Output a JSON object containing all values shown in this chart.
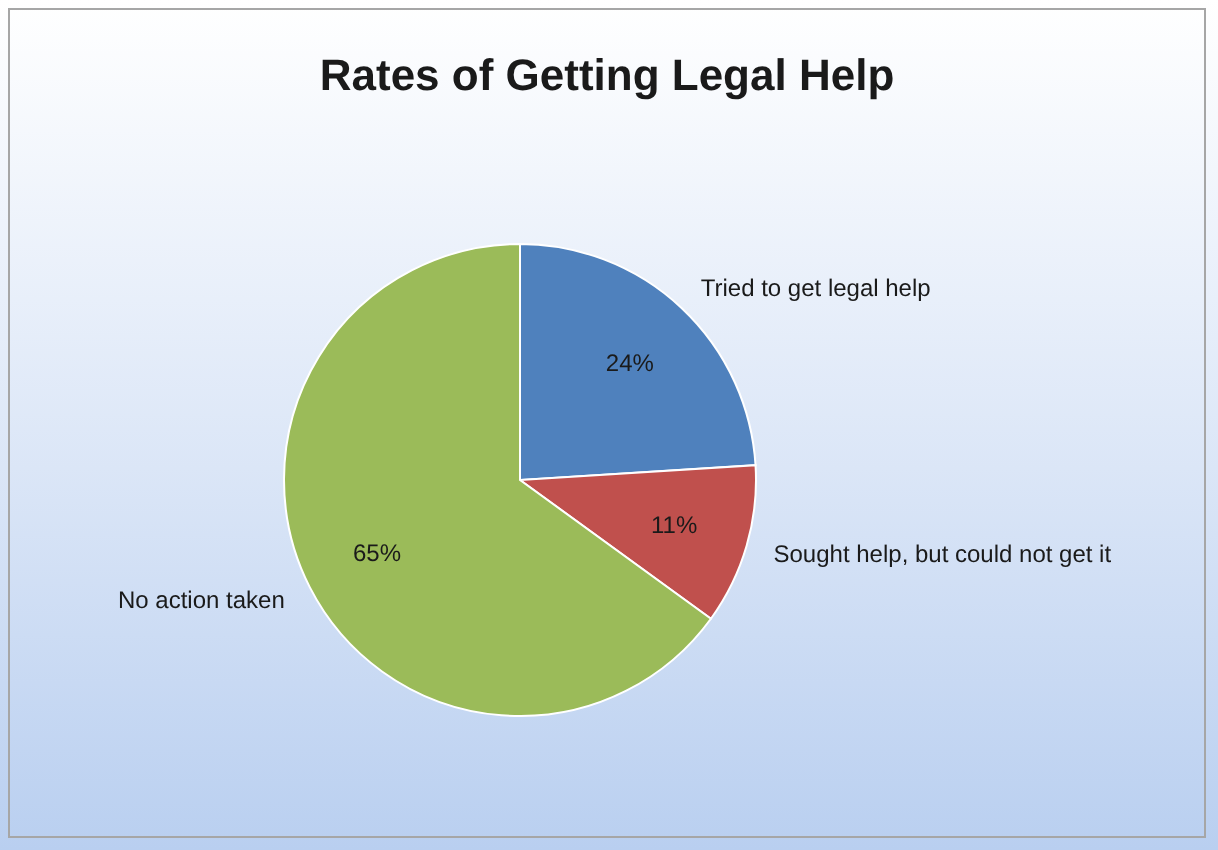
{
  "chart_data": {
    "type": "pie",
    "title": "Rates of Getting Legal Help",
    "categories": [
      "Tried to get legal help",
      "Sought help, but could not get it",
      "No action taken"
    ],
    "values": [
      24,
      11,
      65
    ],
    "colors": [
      "#4f81bd",
      "#c0504d",
      "#9bbb59"
    ],
    "value_labels": [
      "24%",
      "11%",
      "65%"
    ],
    "legend": false
  }
}
